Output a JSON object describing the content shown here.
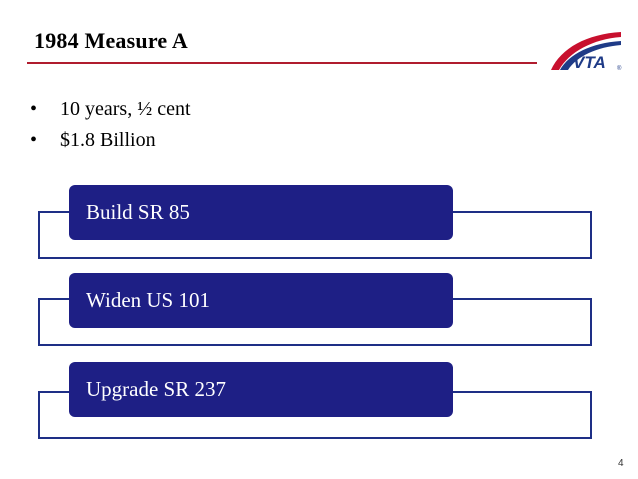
{
  "slide": {
    "title": "1984 Measure A",
    "bullets": [
      {
        "marker": "•",
        "text": "10 years, ½ cent"
      },
      {
        "marker": "•",
        "text": "$1.8 Billion"
      }
    ],
    "steps": [
      {
        "label": "Build SR 85"
      },
      {
        "label": "Widen US 101"
      },
      {
        "label": "Upgrade SR 237"
      }
    ],
    "page_number": "4"
  },
  "logo": {
    "text": "VTA",
    "mark": "®"
  },
  "colors": {
    "title_rule": "#b01c2e",
    "step_fill": "#1e1f85",
    "outline": "#1e2f86",
    "logo_red": "#c8102e",
    "logo_blue": "#1f3b87"
  }
}
